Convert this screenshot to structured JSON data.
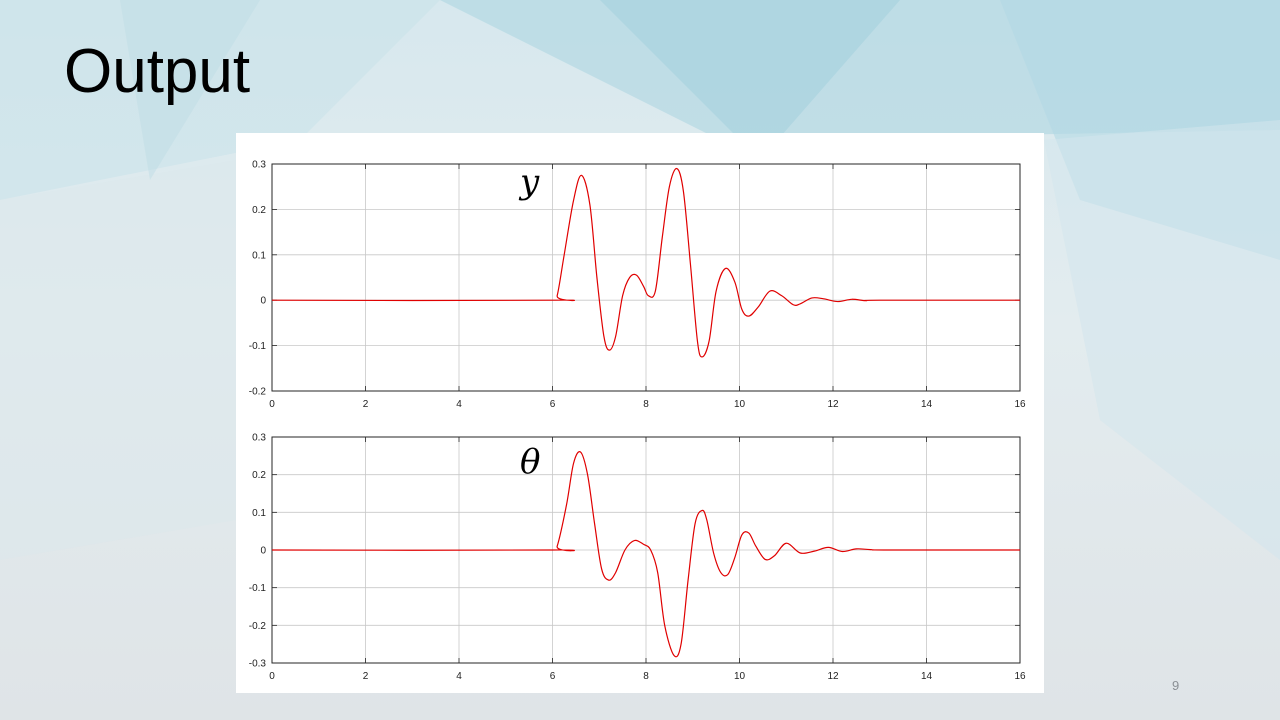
{
  "slide": {
    "title": "Output",
    "page_number": "9"
  },
  "colors": {
    "line": "#e00000",
    "grid": "#c8c8c8",
    "axis": "#262626"
  },
  "chart_data": [
    {
      "type": "line",
      "title": "",
      "annotation": "y",
      "xlabel": "",
      "ylabel": "",
      "xlim": [
        0,
        16
      ],
      "ylim": [
        -0.2,
        0.3
      ],
      "grid": true,
      "xticks": [
        "0",
        "2",
        "4",
        "6",
        "8",
        "10",
        "12",
        "14",
        "16"
      ],
      "yticks": [
        "0.3",
        "0.2",
        "0.1",
        "0",
        "-0.1",
        "-0.2"
      ],
      "series": [
        {
          "x": [
            0,
            6.0,
            6.1,
            6.25,
            6.45,
            6.62,
            6.8,
            6.95,
            7.1,
            7.22,
            7.35,
            7.5,
            7.65,
            7.8,
            7.95,
            8.05,
            8.2,
            8.35,
            8.5,
            8.66,
            8.8,
            8.95,
            9.1,
            9.2,
            9.35,
            9.5,
            9.7,
            9.9,
            10.05,
            10.2,
            10.4,
            10.65,
            10.9,
            11.15,
            11.3,
            11.55,
            11.8,
            12.1,
            12.4,
            12.7,
            13.0,
            16
          ],
          "y": [
            0,
            0,
            0.01,
            0.1,
            0.22,
            0.275,
            0.21,
            0.05,
            -0.08,
            -0.11,
            -0.08,
            0.01,
            0.05,
            0.055,
            0.03,
            0.01,
            0.02,
            0.14,
            0.25,
            0.29,
            0.24,
            0.08,
            -0.09,
            -0.125,
            -0.09,
            0.02,
            0.07,
            0.04,
            -0.02,
            -0.035,
            -0.015,
            0.02,
            0.01,
            -0.01,
            -0.008,
            0.005,
            0.003,
            -0.003,
            0.002,
            -0.001,
            0,
            0
          ]
        }
      ]
    },
    {
      "type": "line",
      "title": "",
      "annotation": "θ",
      "xlabel": "",
      "ylabel": "",
      "xlim": [
        0,
        16
      ],
      "ylim": [
        -0.3,
        0.3
      ],
      "grid": true,
      "xticks": [
        "0",
        "2",
        "4",
        "6",
        "8",
        "10",
        "12",
        "14",
        "16"
      ],
      "yticks": [
        "0.3",
        "0.2",
        "0.1",
        "0",
        "-0.1",
        "-0.2",
        "-0.3"
      ],
      "series": [
        {
          "x": [
            0,
            6.0,
            6.1,
            6.3,
            6.45,
            6.6,
            6.75,
            6.9,
            7.05,
            7.2,
            7.35,
            7.55,
            7.75,
            7.95,
            8.1,
            8.25,
            8.4,
            8.6,
            8.75,
            8.9,
            9.05,
            9.2,
            9.3,
            9.45,
            9.6,
            9.75,
            9.9,
            10.05,
            10.2,
            10.35,
            10.55,
            10.75,
            11.0,
            11.3,
            11.6,
            11.9,
            12.2,
            12.5,
            12.8,
            13.2,
            16
          ],
          "y": [
            0,
            0,
            0.01,
            0.12,
            0.23,
            0.26,
            0.2,
            0.07,
            -0.05,
            -0.08,
            -0.06,
            -0.0,
            0.025,
            0.015,
            0.0,
            -0.06,
            -0.2,
            -0.28,
            -0.25,
            -0.08,
            0.07,
            0.105,
            0.08,
            -0.01,
            -0.06,
            -0.065,
            -0.02,
            0.04,
            0.045,
            0.01,
            -0.025,
            -0.015,
            0.018,
            -0.008,
            -0.003,
            0.007,
            -0.004,
            0.003,
            0.001,
            0.0,
            0
          ]
        }
      ]
    }
  ]
}
